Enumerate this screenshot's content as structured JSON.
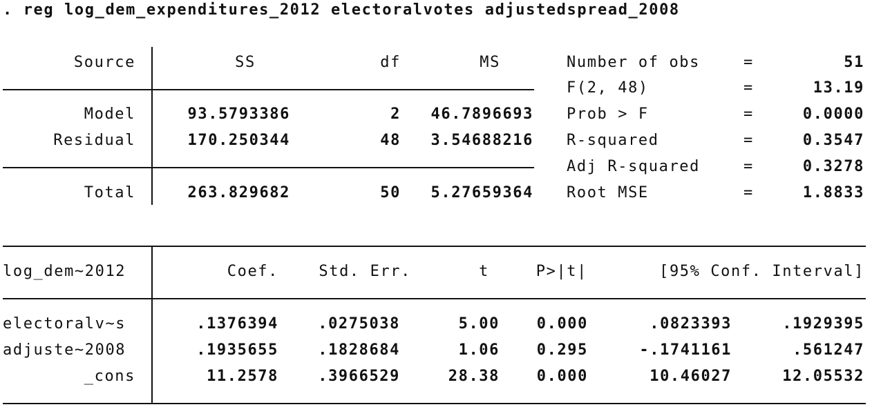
{
  "command": ". reg log_dem_expenditures_2012 electoralvotes adjustedspread_2008",
  "anova": {
    "headers": {
      "source": "Source",
      "ss": "SS",
      "df": "df",
      "ms": "MS"
    },
    "rows": [
      {
        "source": "Model",
        "ss": "93.5793386",
        "df": "2",
        "ms": "46.7896693"
      },
      {
        "source": "Residual",
        "ss": "170.250344",
        "df": "48",
        "ms": "3.54688216"
      },
      {
        "source": "Total",
        "ss": "263.829682",
        "df": "50",
        "ms": "5.27659364"
      }
    ]
  },
  "stats": [
    {
      "label": "Number of obs",
      "eq": "=",
      "value": "51"
    },
    {
      "label": "F(2, 48)",
      "eq": "=",
      "value": "13.19"
    },
    {
      "label": "Prob > F",
      "eq": "=",
      "value": "0.0000"
    },
    {
      "label": "R-squared",
      "eq": "=",
      "value": "0.3547"
    },
    {
      "label": "Adj R-squared",
      "eq": "=",
      "value": "0.3278"
    },
    {
      "label": "Root MSE",
      "eq": "=",
      "value": "1.8833"
    }
  ],
  "coef": {
    "headers": {
      "depvar": "log_dem~2012",
      "coef": "Coef.",
      "se": "Std. Err.",
      "t": "t",
      "p": "P>|t|",
      "ci": "[95% Conf. Interval]"
    },
    "rows": [
      {
        "var": "electoralv~s",
        "coef": ".1376394",
        "se": ".0275038",
        "t": "5.00",
        "p": "0.000",
        "lo": ".0823393",
        "hi": ".1929395"
      },
      {
        "var": "adjuste~2008",
        "coef": ".1935655",
        "se": ".1828684",
        "t": "1.06",
        "p": "0.295",
        "lo": "-.1741161",
        "hi": ".561247"
      },
      {
        "var": "_cons",
        "coef": "11.2578",
        "se": ".3966529",
        "t": "28.38",
        "p": "0.000",
        "lo": "10.46027",
        "hi": "12.05532"
      }
    ]
  }
}
